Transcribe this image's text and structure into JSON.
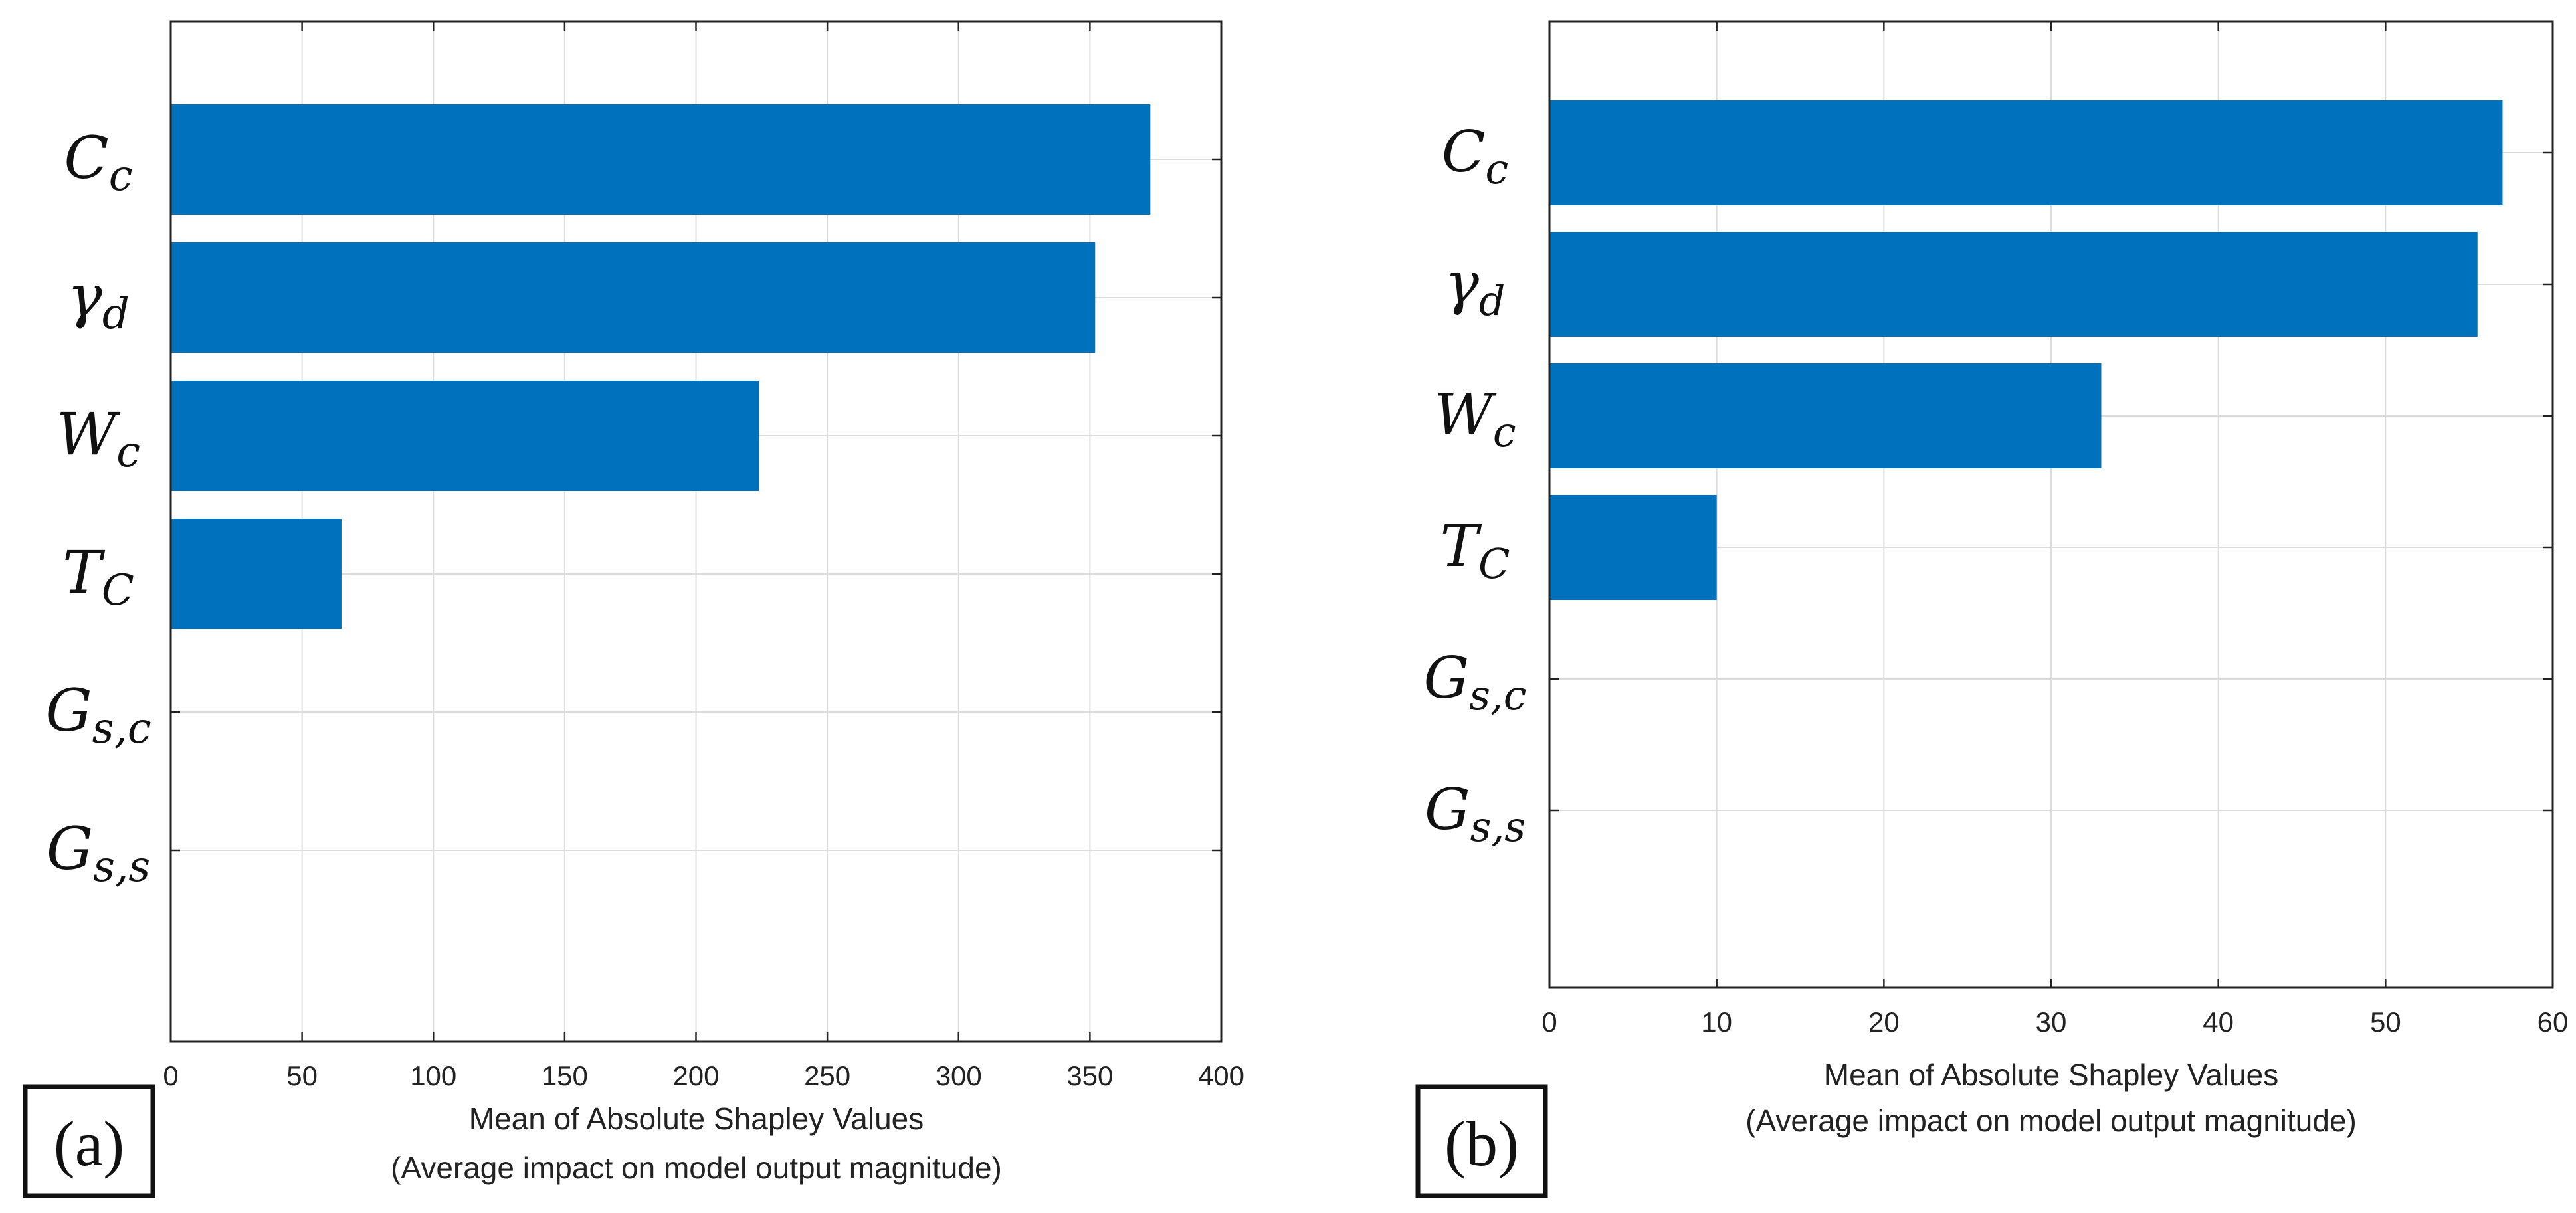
{
  "chart_data": [
    {
      "type": "bar",
      "orientation": "horizontal",
      "panel_label": "(a)",
      "categories": [
        {
          "base": "C",
          "sub": "c"
        },
        {
          "base": "γ",
          "sub": "d"
        },
        {
          "base": "W",
          "sub": "c"
        },
        {
          "base": "T",
          "sub": "C"
        },
        {
          "base": "G",
          "sub": "s,c"
        },
        {
          "base": "G",
          "sub": "s,s"
        }
      ],
      "values": [
        373,
        352,
        224,
        65,
        0,
        0
      ],
      "xlim": [
        0,
        400
      ],
      "xticks": [
        "0",
        "50",
        "100",
        "150",
        "200",
        "250",
        "300",
        "350",
        "400"
      ],
      "xlabel": "Mean of Absolute Shapley Values",
      "xlabel2": "(Average impact on model output magnitude)",
      "grid": true,
      "bar_color": "#0072BD"
    },
    {
      "type": "bar",
      "orientation": "horizontal",
      "panel_label": "(b)",
      "categories": [
        {
          "base": "C",
          "sub": "c"
        },
        {
          "base": "γ",
          "sub": "d"
        },
        {
          "base": "W",
          "sub": "c"
        },
        {
          "base": "T",
          "sub": "C"
        },
        {
          "base": "G",
          "sub": "s,c"
        },
        {
          "base": "G",
          "sub": "s,s"
        }
      ],
      "values": [
        57,
        55.5,
        33,
        10,
        0,
        0
      ],
      "xlim": [
        0,
        60
      ],
      "xticks": [
        "0",
        "10",
        "20",
        "30",
        "40",
        "50",
        "60"
      ],
      "xlabel": "Mean of Absolute Shapley Values",
      "xlabel2": "(Average impact on model output magnitude)",
      "grid": true,
      "bar_color": "#0072BD"
    }
  ]
}
